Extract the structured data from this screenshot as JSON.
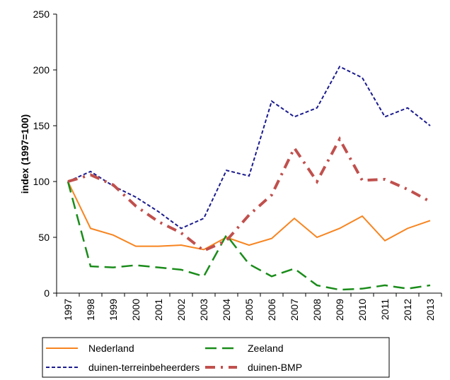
{
  "chart_data": {
    "type": "line",
    "y_label": "index (1997=100)",
    "categories": [
      "1997",
      "1998",
      "1999",
      "2000",
      "2001",
      "2002",
      "2003",
      "2004",
      "2005",
      "2006",
      "2007",
      "2008",
      "2009",
      "2010",
      "2011",
      "2012",
      "2013"
    ],
    "series": [
      {
        "name": "Nederland",
        "color": "#f7841f",
        "dash": "solid",
        "values": [
          100,
          58,
          52,
          42,
          42,
          43,
          39,
          50,
          43,
          49,
          67,
          50,
          58,
          69,
          47,
          58,
          65
        ]
      },
      {
        "name": "Zeeland",
        "color": "#1a8c1a",
        "dash": "long",
        "values": [
          100,
          24,
          23,
          25,
          23,
          21,
          15,
          52,
          26,
          15,
          22,
          7,
          3,
          4,
          7,
          4,
          7
        ]
      },
      {
        "name": "duinen-terreinbeheerders",
        "color": "#1b1b8f",
        "dash": "short",
        "values": [
          100,
          109,
          96,
          86,
          73,
          58,
          67,
          110,
          105,
          172,
          158,
          166,
          203,
          193,
          158,
          166,
          150
        ]
      },
      {
        "name": "duinen-BMP",
        "color": "#c0504d",
        "dash": "dashdot",
        "values": [
          100,
          106,
          97,
          78,
          64,
          54,
          38,
          47,
          70,
          88,
          130,
          100,
          138,
          101,
          102,
          93,
          82
        ]
      }
    ],
    "ylim": [
      0,
      250
    ],
    "yticks": [
      0,
      50,
      100,
      150,
      200,
      250
    ]
  }
}
